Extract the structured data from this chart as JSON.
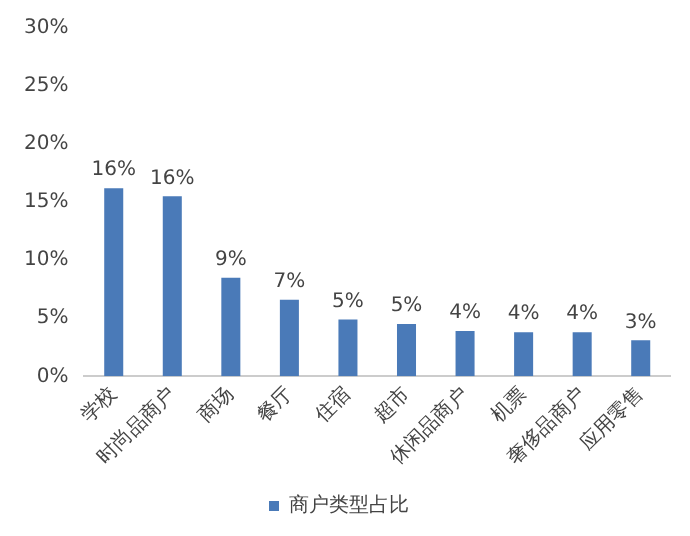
{
  "chart_data": {
    "type": "bar",
    "categories": [
      "学校",
      "时尚品商户",
      "商场",
      "餐厅",
      "住宿",
      "超市",
      "休闲品商户",
      "机票",
      "奢侈品商户",
      "应用零售"
    ],
    "series": [
      {
        "name": "商户类型占比",
        "color": "#4a7ab8",
        "values": [
          16.2,
          15.5,
          8.5,
          6.6,
          4.9,
          4.5,
          3.9,
          3.8,
          3.8,
          3.1
        ],
        "value_labels": [
          "16%",
          "16%",
          "9%",
          "7%",
          "5%",
          "5%",
          "4%",
          "4%",
          "4%",
          "3%"
        ]
      }
    ],
    "ylim": [
      0,
      30
    ],
    "yticks": [
      {
        "value": 0,
        "label": "0%"
      },
      {
        "value": 5,
        "label": "5%"
      },
      {
        "value": 10,
        "label": "10%"
      },
      {
        "value": 15,
        "label": "15%"
      },
      {
        "value": 20,
        "label": "20%"
      },
      {
        "value": 25,
        "label": "25%"
      },
      {
        "value": 30,
        "label": "30%"
      }
    ],
    "grid": false,
    "legend": "bottom"
  }
}
